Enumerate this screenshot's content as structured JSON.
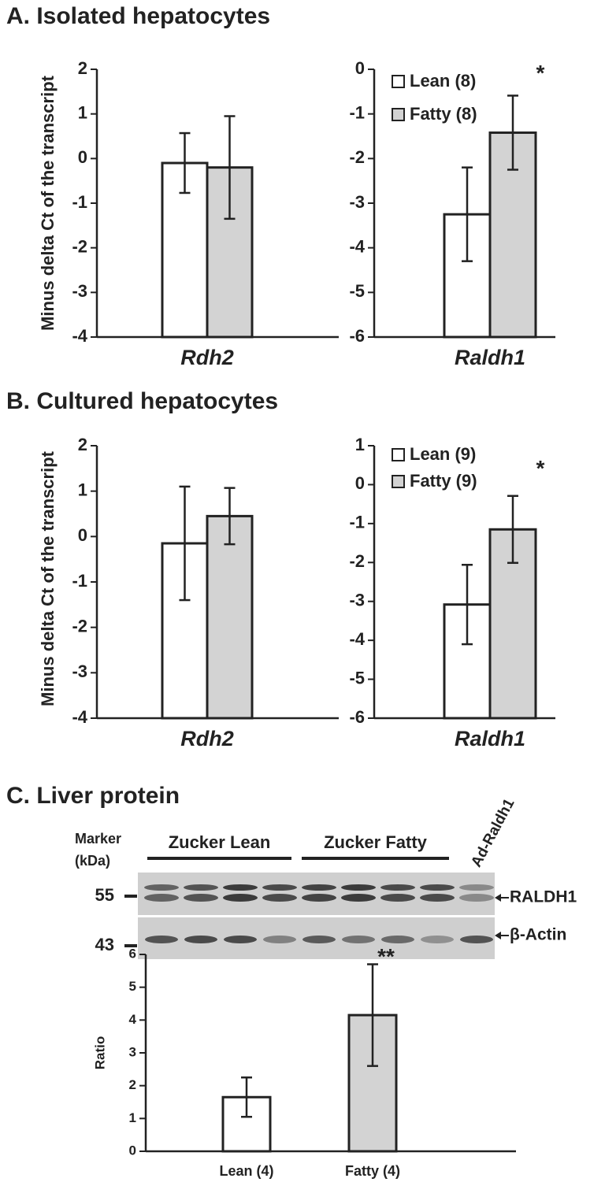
{
  "panel_titles": [
    "A. Isolated hepatocytes",
    "B. Cultured hepatocytes",
    "C. Liver protein"
  ],
  "blot": {
    "marker_label": [
      "Marker",
      "(kDa)"
    ],
    "groups": [
      "Zucker Lean",
      "Zucker Fatty"
    ],
    "lane_label": "Ad-Raldh1",
    "markers": [
      55,
      43
    ],
    "bands": [
      "RALDH1",
      "β-Actin"
    ]
  },
  "chart_data": [
    {
      "type": "bar",
      "ylabel": "Minus delta Ct of the transcript",
      "categories": [
        "Rdh2"
      ],
      "series": [
        {
          "color": "#ffffff",
          "values": [
            -0.1
          ],
          "errors": [
            0.67
          ]
        },
        {
          "color": "#d3d3d3",
          "values": [
            -0.2
          ],
          "errors": [
            1.15
          ]
        }
      ],
      "ylim": [
        -4,
        2
      ],
      "yticks": [
        -4,
        -3,
        -2,
        -1,
        0,
        1,
        2
      ]
    },
    {
      "type": "bar",
      "categories": [
        "Raldh1"
      ],
      "series": [
        {
          "name": "Lean (8)",
          "color": "#ffffff",
          "values": [
            -3.25
          ],
          "errors": [
            1.05
          ]
        },
        {
          "name": "Fatty (8)",
          "color": "#d3d3d3",
          "values": [
            -1.42
          ],
          "errors": [
            0.83
          ]
        }
      ],
      "ylim": [
        -6,
        0
      ],
      "yticks": [
        -6,
        -5,
        -4,
        -3,
        -2,
        -1,
        0
      ],
      "annotation": "*"
    },
    {
      "type": "bar",
      "ylabel": "Minus delta Ct of the transcript",
      "categories": [
        "Rdh2"
      ],
      "series": [
        {
          "color": "#ffffff",
          "values": [
            -0.15
          ],
          "errors": [
            1.25
          ]
        },
        {
          "color": "#d3d3d3",
          "values": [
            0.45
          ],
          "errors": [
            0.62
          ]
        }
      ],
      "ylim": [
        -4,
        2
      ],
      "yticks": [
        -4,
        -3,
        -2,
        -1,
        0,
        1,
        2
      ]
    },
    {
      "type": "bar",
      "categories": [
        "Raldh1"
      ],
      "series": [
        {
          "name": "Lean (9)",
          "color": "#ffffff",
          "values": [
            -3.08
          ],
          "errors": [
            1.02
          ]
        },
        {
          "name": "Fatty (9)",
          "color": "#d3d3d3",
          "values": [
            -1.15
          ],
          "errors": [
            0.86
          ]
        }
      ],
      "ylim": [
        -6,
        1
      ],
      "yticks": [
        -6,
        -5,
        -4,
        -3,
        -2,
        -1,
        0,
        1
      ],
      "annotation": "*"
    },
    {
      "type": "bar",
      "ylabel": "Ratio",
      "categories": [
        "Lean (4)",
        "Fatty (4)"
      ],
      "series": [
        {
          "colors": [
            "#ffffff",
            "#d3d3d3"
          ],
          "values": [
            1.65,
            4.15
          ],
          "errors": [
            0.6,
            1.55
          ]
        }
      ],
      "ylim": [
        0,
        6
      ],
      "yticks": [
        0,
        1,
        2,
        3,
        4,
        5,
        6
      ],
      "annotation": "**"
    }
  ]
}
